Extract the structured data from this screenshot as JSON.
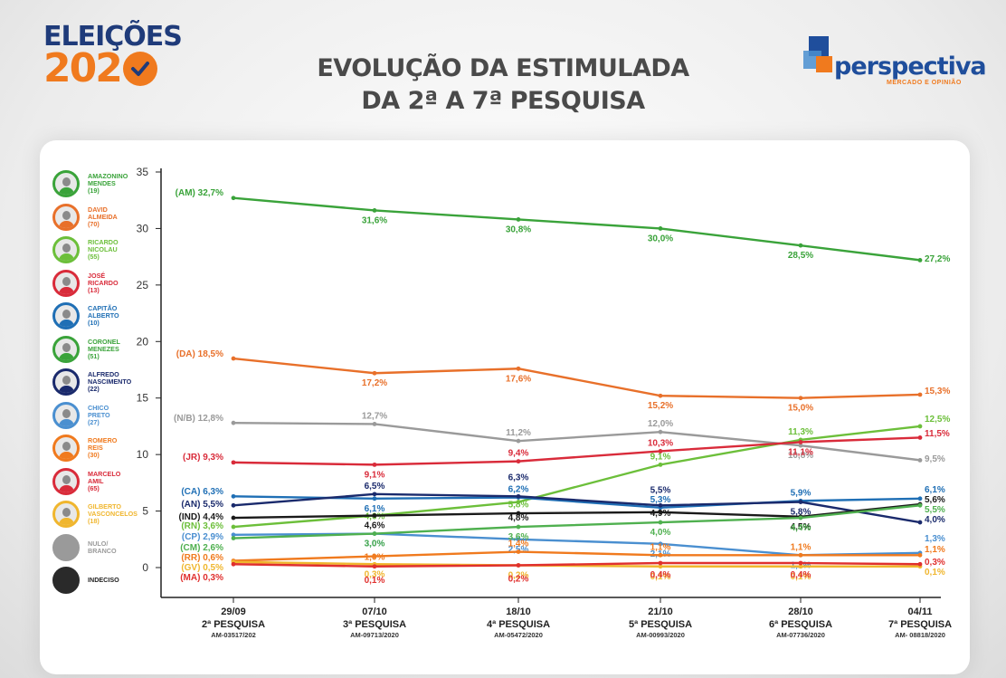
{
  "header": {
    "brand_top": "ELEIÇÕES",
    "brand_bottom": "202",
    "title_line1": "EVOLUÇÃO DA ESTIMULADA",
    "title_line2": "DA 2ª A 7ª PESQUISA",
    "logo_name": "perspectiva",
    "logo_sub": "MERCADO E OPINIÃO"
  },
  "legend": [
    {
      "name": "AMAZONINO\nMENDES\n(19)",
      "color": "#3aa33a"
    },
    {
      "name": "DAVID\nALMEIDA\n(70)",
      "color": "#e8702a"
    },
    {
      "name": "RICARDO\nNICOLAU\n(55)",
      "color": "#6cbf3a"
    },
    {
      "name": "JOSÉ\nRICARDO\n(13)",
      "color": "#d92b3a"
    },
    {
      "name": "CAPITÃO\nALBERTO\n(10)",
      "color": "#1f6fb5"
    },
    {
      "name": "CORONEL\nMENEZES\n(51)",
      "color": "#3aa33a"
    },
    {
      "name": "ALFREDO\nNASCIMENTO\n(22)",
      "color": "#1a2a6c"
    },
    {
      "name": "CHICO\nPRETO\n(27)",
      "color": "#4a8fd0"
    },
    {
      "name": "ROMERO\nREIS\n(30)",
      "color": "#f07a1e"
    },
    {
      "name": "MARCELO\nAMIL\n(65)",
      "color": "#d92b3a"
    },
    {
      "name": "GILBERTO\nVASCONCELOS\n(18)",
      "color": "#f0b62e"
    },
    {
      "name": "NULO/\nBRANCO",
      "color": "#9a9a9a"
    },
    {
      "name": "INDECISO",
      "color": "#2a2a2a"
    }
  ],
  "chart_data": {
    "type": "line",
    "categories": [
      "29/09",
      "07/10",
      "18/10",
      "21/10",
      "28/10",
      "04/11"
    ],
    "category_labels": [
      "2ª PESQUISA",
      "3ª PESQUISA",
      "4ª PESQUISA",
      "5ª PESQUISA",
      "6ª PESQUISA",
      "7ª PESQUISA"
    ],
    "category_codes": [
      "AM-03517/202",
      "AM-09713/2020",
      "AM-05472/2020",
      "AM-00993/2020",
      "AM-07736/2020",
      "AM- 08818/2020"
    ],
    "ylim": [
      0,
      35
    ],
    "yticks": [
      0,
      5,
      10,
      15,
      20,
      25,
      30,
      35
    ],
    "series": [
      {
        "abbr": "(AM)",
        "color": "#3aa33a",
        "values": [
          32.7,
          31.6,
          30.8,
          30.0,
          28.5,
          27.2
        ],
        "labels": [
          "32,7%",
          "31,6%",
          "30,8%",
          "30,0%",
          "28,5%",
          "27,2%"
        ]
      },
      {
        "abbr": "(DA)",
        "color": "#e8702a",
        "values": [
          18.5,
          17.2,
          17.6,
          15.2,
          15.0,
          15.3
        ],
        "labels": [
          "18,5%",
          "17,2%",
          "17,6%",
          "15,2%",
          "15,0%",
          "15,3%"
        ]
      },
      {
        "abbr": "(N/B)",
        "color": "#9a9a9a",
        "values": [
          12.8,
          12.7,
          11.2,
          12.0,
          10.8,
          9.5
        ],
        "labels": [
          "12,8%",
          "12,7%",
          "11,2%",
          "12,0%",
          "10,8%",
          "9,5%"
        ]
      },
      {
        "abbr": "(RN)",
        "color": "#6cbf3a",
        "values": [
          3.6,
          4.6,
          5.8,
          9.1,
          11.3,
          12.5
        ],
        "labels": [
          "3,6%",
          "4,6%",
          "5,8%",
          "9,1%",
          "11,3%",
          "12,5%"
        ]
      },
      {
        "abbr": "(JR)",
        "color": "#d92b3a",
        "values": [
          9.3,
          9.1,
          9.4,
          10.3,
          11.1,
          11.5
        ],
        "labels": [
          "9,3%",
          "9,1%",
          "9,4%",
          "10,3%",
          "11,1%",
          "11,5%"
        ]
      },
      {
        "abbr": "(CA)",
        "color": "#1f6fb5",
        "values": [
          6.3,
          6.1,
          6.2,
          5.3,
          5.9,
          6.1
        ],
        "labels": [
          "6,3%",
          "6,1%",
          "6,2%",
          "5,3%",
          "5,9%",
          "6,1%"
        ]
      },
      {
        "abbr": "(AN)",
        "color": "#1a2a6c",
        "values": [
          5.5,
          6.5,
          6.3,
          5.5,
          5.8,
          4.0
        ],
        "labels": [
          "5,5%",
          "6,5%",
          "6,3%",
          "5,5%",
          "5,8%",
          "4,0%"
        ]
      },
      {
        "abbr": "(IND)",
        "color": "#1a1a1a",
        "values": [
          4.4,
          4.6,
          4.8,
          4.9,
          4.5,
          5.6
        ],
        "labels": [
          "4,4%",
          "4,6%",
          "4,8%",
          "4,9%",
          "4,5%",
          "5,6%"
        ]
      },
      {
        "abbr": "(CP)",
        "color": "#4a8fd0",
        "values": [
          2.9,
          3.0,
          2.5,
          2.1,
          1.1,
          1.3
        ],
        "labels": [
          "2,9%",
          "3,0%",
          "2,5%",
          "2,1%",
          "1,1%",
          "1,3%"
        ]
      },
      {
        "abbr": "(CM)",
        "color": "#4fb04f",
        "values": [
          2.6,
          3.0,
          3.6,
          4.0,
          4.4,
          5.5
        ],
        "labels": [
          "2,6%",
          "3,0%",
          "3,6%",
          "4,0%",
          "4,4%",
          "5,5%"
        ]
      },
      {
        "abbr": "(RR)",
        "color": "#f07a1e",
        "values": [
          0.6,
          1.0,
          1.4,
          1.1,
          1.1,
          1.1
        ],
        "labels": [
          "0,6%",
          "1,0%",
          "1,4%",
          "1,1%",
          "1,1%",
          "1,1%"
        ]
      },
      {
        "abbr": "(GV)",
        "color": "#f0b62e",
        "values": [
          0.5,
          0.3,
          0.2,
          0.1,
          0.1,
          0.1
        ],
        "labels": [
          "0,5%",
          "0,3%",
          "0,2%",
          "0,1%",
          "0,1%",
          "0,1%"
        ]
      },
      {
        "abbr": "(MA)",
        "color": "#e0302e",
        "values": [
          0.3,
          0.1,
          0.2,
          0.4,
          0.4,
          0.3
        ],
        "labels": [
          "0,3%",
          "0,1%",
          "0,2%",
          "0,4%",
          "0,4%",
          "0,3%"
        ]
      }
    ]
  }
}
